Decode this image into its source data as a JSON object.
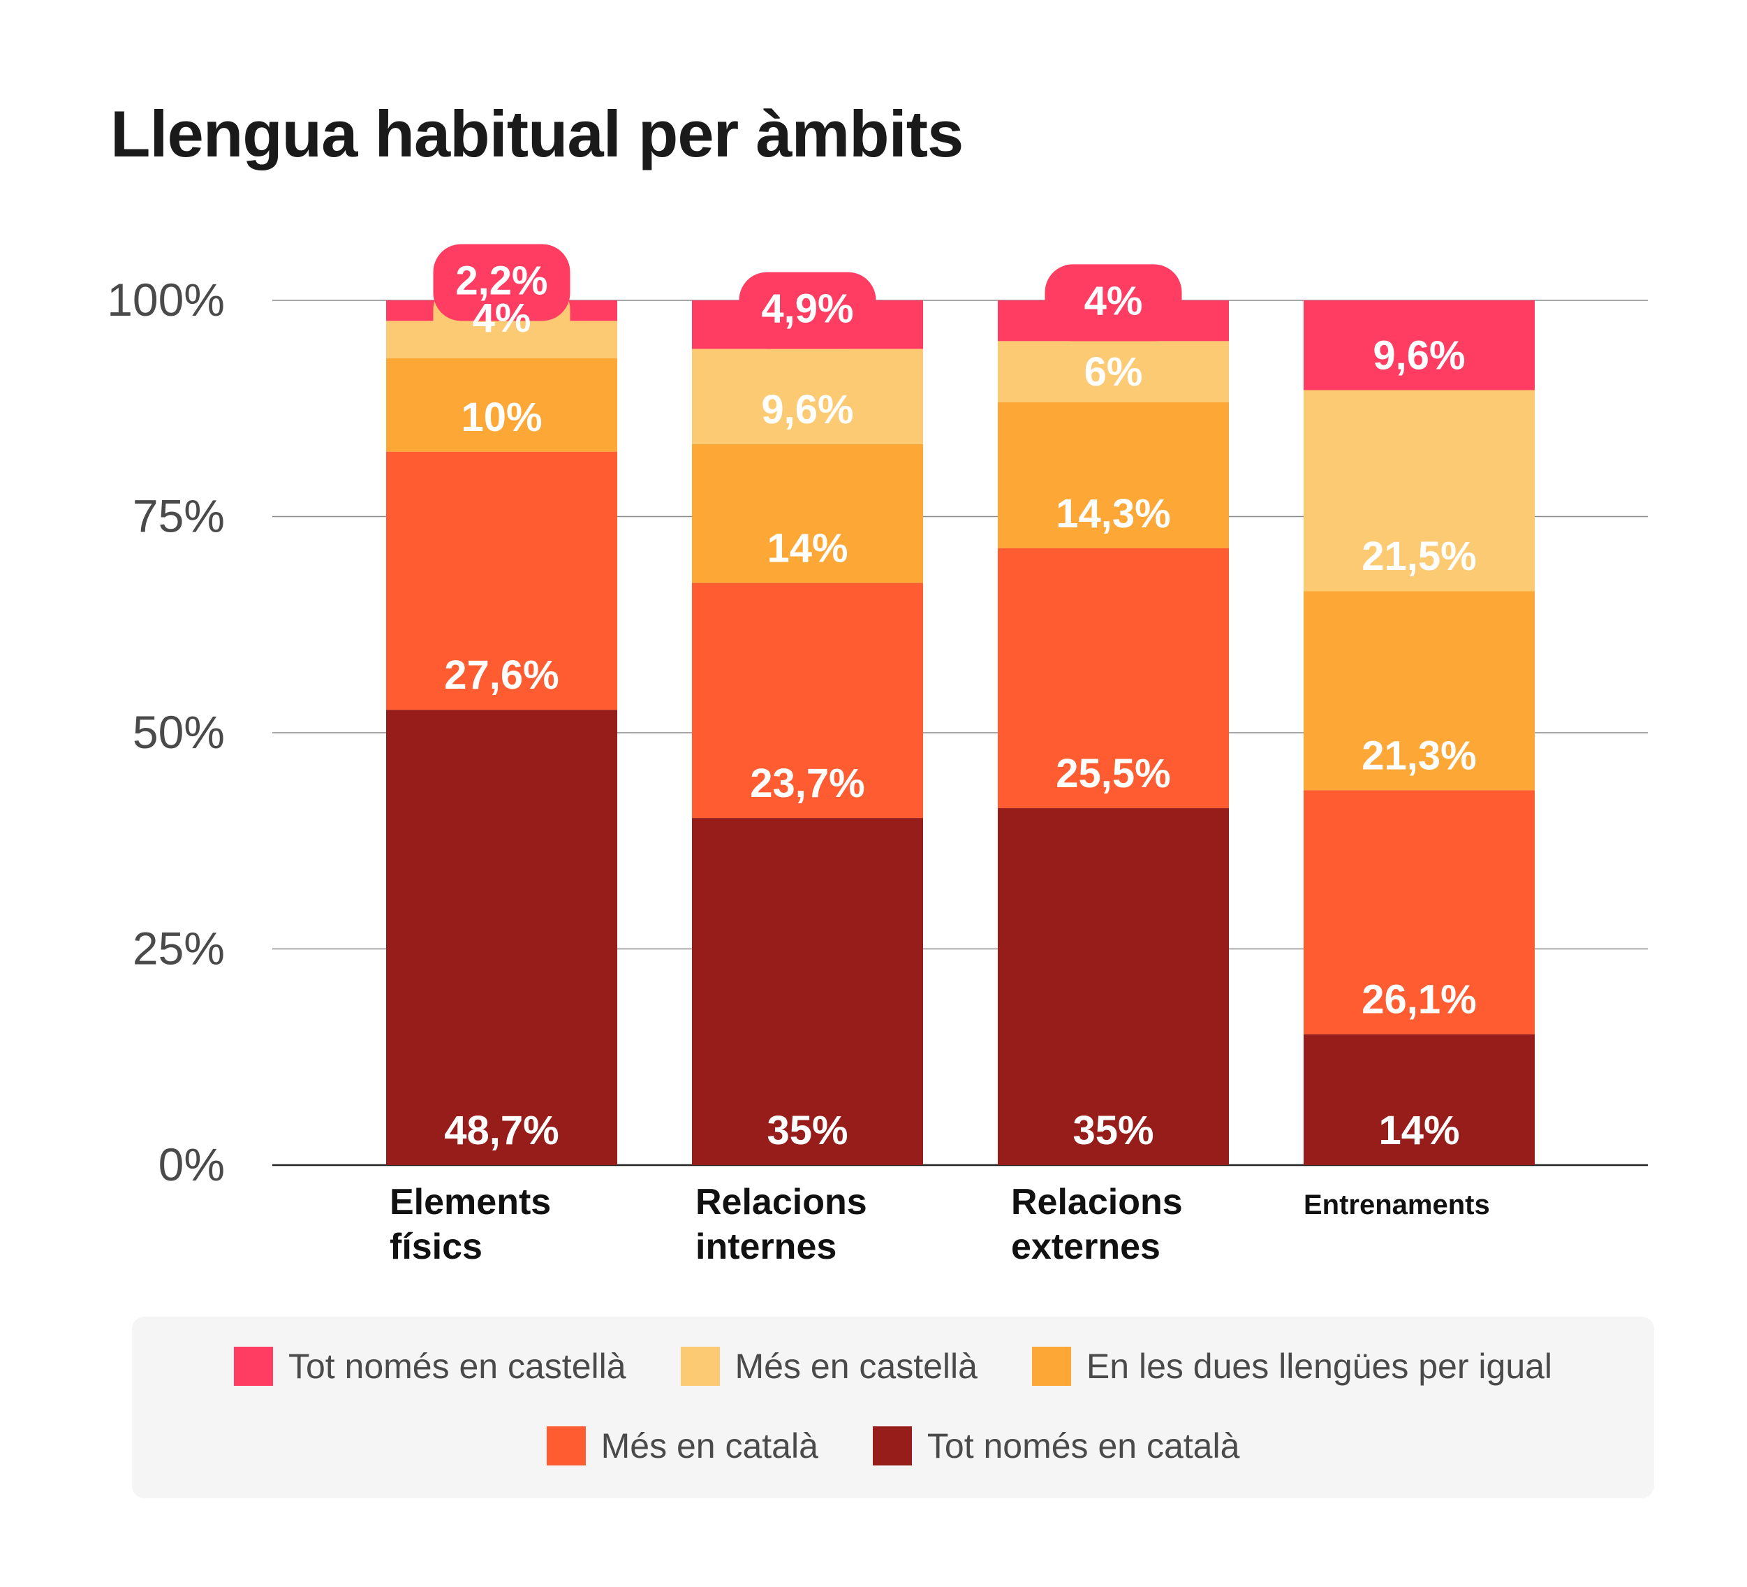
{
  "chart_data": {
    "type": "bar",
    "stacked": true,
    "normalized": true,
    "title": "Llengua habitual per àmbits",
    "xlabel": "",
    "ylabel": "",
    "ylim": [
      0,
      100
    ],
    "y_ticks": [
      "0%",
      "25%",
      "50%",
      "75%",
      "100%"
    ],
    "grid": true,
    "legend_position": "bottom",
    "categories": [
      [
        "Elements",
        "físics"
      ],
      [
        "Relacions",
        "internes"
      ],
      [
        "Relacions",
        "externes"
      ],
      [
        "Entrenaments"
      ]
    ],
    "series": [
      {
        "name": "Tot només en català",
        "color": "#961d1a",
        "values": [
          48.7,
          35,
          35,
          14
        ]
      },
      {
        "name": "Més en català",
        "color": "#ff5c31",
        "values": [
          27.6,
          23.7,
          25.5,
          26.1
        ]
      },
      {
        "name": "En les dues llengües per igual",
        "color": "#fda737",
        "values": [
          10,
          14,
          14.3,
          21.3
        ]
      },
      {
        "name": "Més en castellà",
        "color": "#fdca74",
        "values": [
          4,
          9.6,
          6,
          21.5
        ]
      },
      {
        "name": "Tot només en castellà",
        "color": "#ff3d63",
        "values": [
          2.2,
          4.9,
          4,
          9.6
        ]
      }
    ],
    "legend_order": [
      4,
      3,
      2,
      1,
      0
    ]
  }
}
